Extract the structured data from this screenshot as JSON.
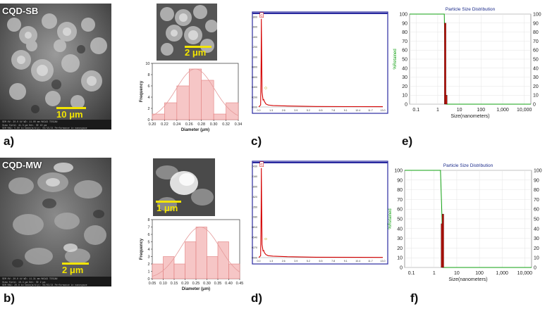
{
  "panels": {
    "a": "a)",
    "b": "b)",
    "c": "c)",
    "d": "d)",
    "e": "e)",
    "f": "f)"
  },
  "sem_sb": {
    "label": "CQD-SB",
    "scale": "10 μm",
    "footer": [
      "SEM HV: 30.0 kV",
      "WD: 11.00 mm",
      "MAIA3 TESCAN",
      "View field: 41.3 μm",
      "Det: SE",
      "10 μm",
      "SEM MAG: 5.00 kx",
      "Date(m/d/y): 04/15/21",
      "Performance in nanospace"
    ]
  },
  "sem_sb_inset": {
    "scale": "2 μm"
  },
  "sem_mw": {
    "label": "CQD-MW",
    "scale": "2 μm",
    "footer": [
      "SEM HV: 20.0 kV",
      "WD: 11.31 mm",
      "MAIA3 TESCAN",
      "View field: 10.4 μm",
      "Det: SE",
      "2 μm",
      "SEM MAG: 20.0 kx",
      "Date(m/d/y): 03/03/21",
      "Performance in nanospace"
    ]
  },
  "sem_mw_inset": {
    "scale": "1 μm"
  },
  "chart_data": [
    {
      "id": "hist_a",
      "type": "bar",
      "xlabel": "Diameter (μm)",
      "ylabel": "Frequency",
      "categories": [
        0.21,
        0.23,
        0.25,
        0.27,
        0.29,
        0.31,
        0.33
      ],
      "values": [
        1,
        3,
        6,
        9,
        7,
        1,
        3
      ],
      "xlim": [
        0.2,
        0.34
      ],
      "ylim": [
        0,
        10
      ],
      "xticks": [
        "0.20",
        "0.22",
        "0.24",
        "0.26",
        "0.28",
        "0.30",
        "0.32",
        "0.34"
      ],
      "yticks": [
        "0",
        "2",
        "4",
        "6",
        "8",
        "10"
      ],
      "fit": "gaussian",
      "fit_mean": 0.27,
      "fit_peak": 9
    },
    {
      "id": "hist_b",
      "type": "bar",
      "xlabel": "Diameter (μm)",
      "ylabel": "Frequency",
      "categories": [
        0.075,
        0.125,
        0.175,
        0.225,
        0.275,
        0.325,
        0.375,
        0.425
      ],
      "values": [
        2,
        3,
        2,
        5,
        7,
        3,
        5,
        2
      ],
      "xlim": [
        0.05,
        0.45
      ],
      "ylim": [
        0,
        8
      ],
      "xticks": [
        "0.05",
        "0.10",
        "0.15",
        "0.20",
        "0.25",
        "0.30",
        "0.35",
        "0.40",
        "0.45"
      ],
      "yticks": [
        "0",
        "1",
        "2",
        "3",
        "4",
        "5",
        "6",
        "7",
        "8"
      ],
      "fit": "gaussian",
      "fit_mean": 0.27,
      "fit_peak": 7
    },
    {
      "id": "eds_c",
      "type": "line",
      "yticks": [
        "0000",
        "0200",
        "0400",
        "0600",
        "0800",
        "1000",
        "1200",
        "1400",
        "1600",
        "1800"
      ],
      "xticks": [
        "0.0",
        "1.3",
        "2.6",
        "3.9",
        "5.2",
        "6.5",
        "7.8",
        "9.1",
        "10.4",
        "11.7",
        "13.0"
      ],
      "ylim": [
        0,
        1800
      ],
      "peak_label": "C",
      "second_peak_label": "O",
      "x": [
        0.0,
        0.2,
        0.25,
        0.27,
        0.3,
        0.35,
        0.45,
        0.52,
        0.6,
        0.75,
        1.0,
        1.5,
        3.0,
        6.0,
        13.0
      ],
      "y": [
        0,
        40,
        900,
        1760,
        1200,
        300,
        140,
        150,
        110,
        60,
        40,
        30,
        20,
        10,
        5
      ]
    },
    {
      "id": "eds_d",
      "type": "line",
      "yticks": [
        "0000",
        "0270",
        "0540",
        "0810",
        "1080",
        "1350",
        "1620",
        "1890",
        "2160",
        "2430"
      ],
      "xticks": [
        "0.0",
        "1.3",
        "2.6",
        "3.9",
        "5.2",
        "6.5",
        "7.8",
        "9.1",
        "10.4",
        "11.7",
        "13.0"
      ],
      "ylim": [
        0,
        2430
      ],
      "peak_label": "C",
      "second_peak_label": "O",
      "x": [
        0.0,
        0.2,
        0.25,
        0.27,
        0.3,
        0.35,
        0.45,
        0.52,
        0.6,
        0.75,
        1.0,
        1.5,
        3.0,
        6.0,
        13.0
      ],
      "y": [
        0,
        50,
        1200,
        2380,
        1500,
        350,
        180,
        190,
        130,
        80,
        50,
        40,
        25,
        12,
        6
      ]
    },
    {
      "id": "psd_e",
      "type": "bar",
      "title": "Particle Size Distribution",
      "xlabel": "Size(nanometers)",
      "ylabel": "%Retained",
      "xticks": [
        "0.1",
        "1",
        "10",
        "100",
        "1,000",
        "10,000"
      ],
      "yticks": [
        "0",
        "10",
        "20",
        "30",
        "40",
        "50",
        "60",
        "70",
        "80",
        "90",
        "100"
      ],
      "ylim": [
        0,
        100
      ],
      "xlim_log": [
        0.05,
        20000
      ],
      "bars": [
        {
          "x": 2.2,
          "y": 90
        },
        {
          "x": 2.5,
          "y": 10
        }
      ],
      "passing_line": [
        [
          0.05,
          100
        ],
        [
          2.0,
          100
        ],
        [
          2.3,
          10
        ],
        [
          2.6,
          0
        ],
        [
          20000,
          0
        ]
      ]
    },
    {
      "id": "psd_f",
      "type": "bar",
      "title": "Particle Size Distribution",
      "xlabel": "Size(nanometers)",
      "ylabel": "%Retained",
      "xticks": [
        "0.1",
        "1",
        "10",
        "100",
        "1,000",
        "10,000"
      ],
      "yticks": [
        "0",
        "10",
        "20",
        "30",
        "40",
        "50",
        "60",
        "70",
        "80",
        "90",
        "100"
      ],
      "ylim": [
        0,
        100
      ],
      "xlim_log": [
        0.05,
        20000
      ],
      "bars": [
        {
          "x": 2.2,
          "y": 45
        },
        {
          "x": 2.45,
          "y": 55
        }
      ],
      "passing_line": [
        [
          0.05,
          100
        ],
        [
          1.9,
          100
        ],
        [
          2.2,
          55
        ],
        [
          2.5,
          0
        ],
        [
          20000,
          0
        ]
      ]
    }
  ],
  "colors": {
    "hist_fill": "#f6c6c6",
    "hist_stroke": "#e27d7d",
    "fit_line": "#e59a9a",
    "eds_line": "#d40000",
    "eds_frame": "#2a2aa0",
    "psd_bar": "#c0120a",
    "psd_line": "#10a010",
    "psd_title": "#1a2a8a"
  }
}
